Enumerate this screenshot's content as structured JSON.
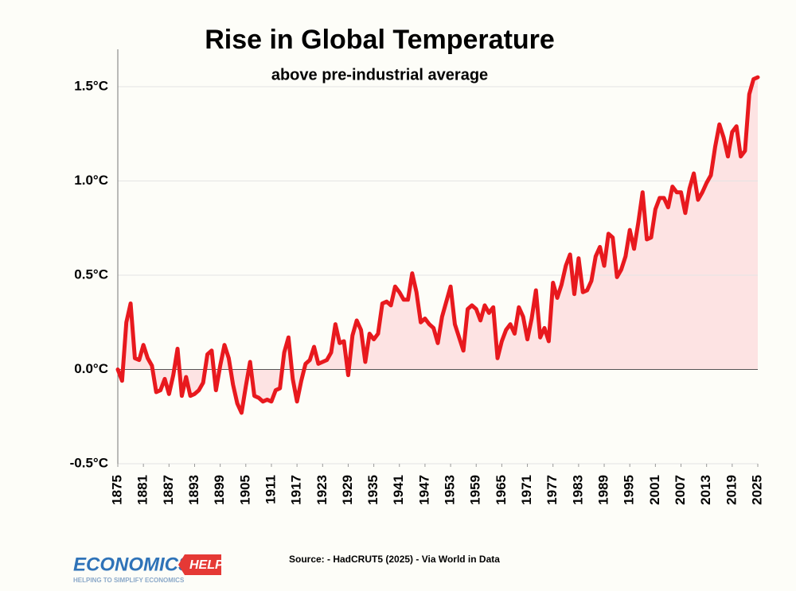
{
  "chart_data": {
    "type": "line",
    "title": "Rise in Global Temperature",
    "subtitle": "above pre-industrial average",
    "source": "Source:  - HadCRUT5 (2025) - Via World in Data",
    "color": "#e8191e",
    "fill_color": "#fde3e3",
    "x": [
      1875,
      1876,
      1877,
      1878,
      1879,
      1880,
      1881,
      1882,
      1883,
      1884,
      1885,
      1886,
      1887,
      1888,
      1889,
      1890,
      1891,
      1892,
      1893,
      1894,
      1895,
      1896,
      1897,
      1898,
      1899,
      1900,
      1901,
      1902,
      1903,
      1904,
      1905,
      1906,
      1907,
      1908,
      1909,
      1910,
      1911,
      1912,
      1913,
      1914,
      1915,
      1916,
      1917,
      1918,
      1919,
      1920,
      1921,
      1922,
      1923,
      1924,
      1925,
      1926,
      1927,
      1928,
      1929,
      1930,
      1931,
      1932,
      1933,
      1934,
      1935,
      1936,
      1937,
      1938,
      1939,
      1940,
      1941,
      1942,
      1943,
      1944,
      1945,
      1946,
      1947,
      1948,
      1949,
      1950,
      1951,
      1952,
      1953,
      1954,
      1955,
      1956,
      1957,
      1958,
      1959,
      1960,
      1961,
      1962,
      1963,
      1964,
      1965,
      1966,
      1967,
      1968,
      1969,
      1970,
      1971,
      1972,
      1973,
      1974,
      1975,
      1976,
      1977,
      1978,
      1979,
      1980,
      1981,
      1982,
      1983,
      1984,
      1985,
      1986,
      1987,
      1988,
      1989,
      1990,
      1991,
      1992,
      1993,
      1994,
      1995,
      1996,
      1997,
      1998,
      1999,
      2000,
      2001,
      2002,
      2003,
      2004,
      2005,
      2006,
      2007,
      2008,
      2009,
      2010,
      2011,
      2012,
      2013,
      2014,
      2015,
      2016,
      2017,
      2018,
      2019,
      2020,
      2021,
      2022,
      2023,
      2024,
      2025
    ],
    "values": [
      0.0,
      -0.06,
      0.25,
      0.35,
      0.06,
      0.05,
      0.13,
      0.06,
      0.02,
      -0.12,
      -0.11,
      -0.05,
      -0.13,
      -0.03,
      0.11,
      -0.14,
      -0.04,
      -0.14,
      -0.13,
      -0.11,
      -0.07,
      0.08,
      0.1,
      -0.11,
      0.02,
      0.13,
      0.06,
      -0.08,
      -0.18,
      -0.23,
      -0.09,
      0.04,
      -0.14,
      -0.15,
      -0.17,
      -0.16,
      -0.17,
      -0.11,
      -0.1,
      0.09,
      0.17,
      -0.05,
      -0.17,
      -0.06,
      0.03,
      0.05,
      0.12,
      0.03,
      0.04,
      0.05,
      0.09,
      0.24,
      0.14,
      0.15,
      -0.03,
      0.18,
      0.26,
      0.21,
      0.04,
      0.19,
      0.16,
      0.19,
      0.35,
      0.36,
      0.34,
      0.44,
      0.41,
      0.37,
      0.37,
      0.51,
      0.41,
      0.25,
      0.27,
      0.24,
      0.22,
      0.14,
      0.28,
      0.36,
      0.44,
      0.24,
      0.17,
      0.1,
      0.32,
      0.34,
      0.32,
      0.26,
      0.34,
      0.3,
      0.33,
      0.06,
      0.15,
      0.21,
      0.24,
      0.19,
      0.33,
      0.28,
      0.16,
      0.27,
      0.42,
      0.17,
      0.22,
      0.15,
      0.46,
      0.38,
      0.45,
      0.55,
      0.61,
      0.4,
      0.59,
      0.41,
      0.42,
      0.47,
      0.6,
      0.65,
      0.55,
      0.72,
      0.7,
      0.49,
      0.53,
      0.6,
      0.74,
      0.64,
      0.78,
      0.94,
      0.69,
      0.7,
      0.85,
      0.91,
      0.91,
      0.86,
      0.97,
      0.94,
      0.94,
      0.83,
      0.96,
      1.04,
      0.9,
      0.94,
      0.99,
      1.03,
      1.18,
      1.3,
      1.23,
      1.13,
      1.26,
      1.29,
      1.13,
      1.16,
      1.46,
      1.54,
      1.55
    ],
    "xlim": [
      1875,
      2025
    ],
    "xticks": [
      1875,
      1881,
      1887,
      1893,
      1899,
      1905,
      1911,
      1917,
      1923,
      1929,
      1935,
      1941,
      1947,
      1953,
      1959,
      1965,
      1971,
      1977,
      1983,
      1989,
      1995,
      2001,
      2007,
      2013,
      2019,
      2025
    ],
    "ylim": [
      -0.5,
      1.7
    ],
    "yticks": [
      {
        "value": -0.5,
        "label": "-0.5°C"
      },
      {
        "value": 0,
        "label": "0.0°C"
      },
      {
        "value": 0.5,
        "label": "0.5°C"
      },
      {
        "value": 1,
        "label": "1.0°C"
      },
      {
        "value": 1.5,
        "label": "1.5°C"
      }
    ],
    "grid": true
  },
  "logo": {
    "name": "ECONOMICS",
    "badge": "HELP",
    "tagline": "HELPING TO SIMPLIFY ECONOMICS"
  }
}
